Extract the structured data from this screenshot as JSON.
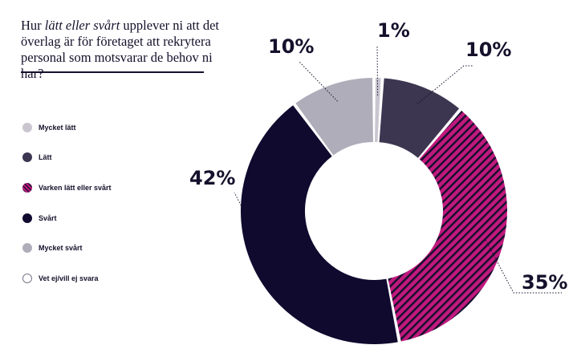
{
  "question": {
    "before": "Hur ",
    "emphasis": "lätt eller svårt",
    "after": " upplever ni att det överlag är för företaget att rekrytera personal som motsvarar de behov ni har?"
  },
  "chart_data": {
    "type": "pie",
    "variant": "donut",
    "title": "Hur lätt eller svårt upplever ni att det överlag är för företaget att rekrytera personal som motsvarar de behov ni har?",
    "legend_placement": "left",
    "categories": [
      "Mycket lätt",
      "Lätt",
      "Varken lätt eller svårt",
      "Svårt",
      "Mycket svårt",
      "Vet ej/vill ej svara"
    ],
    "values": [
      1,
      10,
      35,
      42,
      10,
      0
    ],
    "value_labels": [
      "1%",
      "10%",
      "35%",
      "42%",
      "10%",
      ""
    ],
    "colors": [
      "#c9c6d0",
      "#3d3651",
      "#c2197e",
      "#0f0a2e",
      "#b0adba",
      "#ffffff"
    ],
    "patterns": [
      "solid",
      "solid",
      "hatched",
      "solid",
      "solid",
      "outline"
    ]
  }
}
